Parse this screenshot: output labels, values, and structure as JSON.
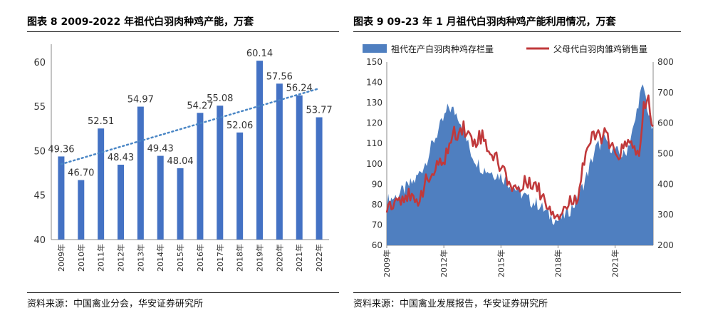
{
  "header": {
    "fig1_title": "图表 8 2009-2022 年祖代白羽肉种鸡产能，万套",
    "fig2_title": "图表 9 09-23 年 1 月祖代白羽肉种鸡产能利用情况，万套"
  },
  "footer": {
    "fig1_source": "资料来源：中国禽业分会，华安证券研究所",
    "fig2_source": "资料来源：中国禽业发展报告，华安证券研究所"
  },
  "colors": {
    "bar": "#4472c4",
    "area": "#4f7fc0",
    "line": "#c0393b",
    "trend": "#4a86c5"
  },
  "chart_data": [
    {
      "type": "bar",
      "title": "",
      "categories": [
        "2009年",
        "2010年",
        "2011年",
        "2012年",
        "2013年",
        "2014年",
        "2015年",
        "2016年",
        "2017年",
        "2018年",
        "2019年",
        "2020年",
        "2021年",
        "2022年"
      ],
      "values": [
        49.36,
        46.7,
        52.51,
        48.43,
        54.97,
        49.43,
        48.04,
        54.27,
        55.08,
        52.06,
        60.14,
        57.56,
        56.24,
        53.77
      ],
      "value_labels": [
        "49.36",
        "46.70",
        "52.51",
        "48.43",
        "54.97",
        "49.43",
        "48.04",
        "54.27",
        "55.08",
        "52.06",
        "60.14",
        "57.56",
        "56.24",
        "53.77"
      ],
      "ylim": [
        40,
        62
      ],
      "yticks": [
        "60",
        "55",
        "50",
        "45",
        "40"
      ],
      "trendline": "linear, dotted",
      "grid": false
    },
    {
      "type": "area",
      "title": "",
      "x_ticks": [
        "2009年",
        "2012年",
        "2015年",
        "2018年",
        "2021年"
      ],
      "x_range": [
        "2009-01",
        "2023-01"
      ],
      "y_left": {
        "lim": [
          60,
          150
        ],
        "ticks": [
          "150",
          "140",
          "130",
          "120",
          "110",
          "100",
          "90",
          "80",
          "70",
          "60"
        ]
      },
      "y_right": {
        "lim": [
          200,
          800
        ],
        "ticks": [
          "800",
          "700",
          "600",
          "500",
          "400",
          "300",
          "200"
        ]
      },
      "legend": {
        "placement": "top",
        "items": [
          "祖代在产白羽肉种鸡存栏量",
          "父母代白羽肉雏鸡销售量"
        ]
      },
      "series": [
        {
          "name": "祖代在产白羽肉种鸡存栏量",
          "kind": "area",
          "axis": "left",
          "x": [
            2009.0,
            2009.5,
            2010.0,
            2010.5,
            2011.0,
            2011.5,
            2012.0,
            2012.25,
            2012.5,
            2012.75,
            2013.0,
            2013.25,
            2013.5,
            2014.0,
            2014.5,
            2015.0,
            2015.5,
            2016.0,
            2016.5,
            2017.0,
            2017.5,
            2018.0,
            2018.5,
            2019.0,
            2019.5,
            2020.0,
            2020.5,
            2021.0,
            2021.5,
            2022.0,
            2022.25,
            2022.5,
            2022.75,
            2023.0
          ],
          "values": [
            82,
            84,
            88,
            92,
            100,
            112,
            122,
            128,
            126,
            124,
            118,
            110,
            104,
            98,
            96,
            94,
            90,
            86,
            82,
            80,
            75,
            72,
            76,
            82,
            94,
            108,
            112,
            106,
            104,
            118,
            132,
            138,
            125,
            115
          ]
        },
        {
          "name": "父母代白羽肉雏鸡销售量",
          "kind": "line",
          "axis": "right",
          "x": [
            2009.0,
            2009.5,
            2010.0,
            2010.5,
            2011.0,
            2011.5,
            2012.0,
            2012.5,
            2013.0,
            2013.5,
            2014.0,
            2014.5,
            2015.0,
            2015.5,
            2016.0,
            2016.5,
            2017.0,
            2017.5,
            2018.0,
            2018.5,
            2019.0,
            2019.5,
            2020.0,
            2020.5,
            2021.0,
            2021.5,
            2022.0,
            2022.25,
            2022.5,
            2022.75,
            2023.0
          ],
          "values": [
            330,
            350,
            370,
            330,
            400,
            440,
            480,
            560,
            590,
            540,
            560,
            500,
            460,
            400,
            380,
            420,
            380,
            330,
            300,
            330,
            360,
            520,
            560,
            560,
            490,
            520,
            540,
            470,
            640,
            680,
            580
          ]
        }
      ]
    }
  ]
}
